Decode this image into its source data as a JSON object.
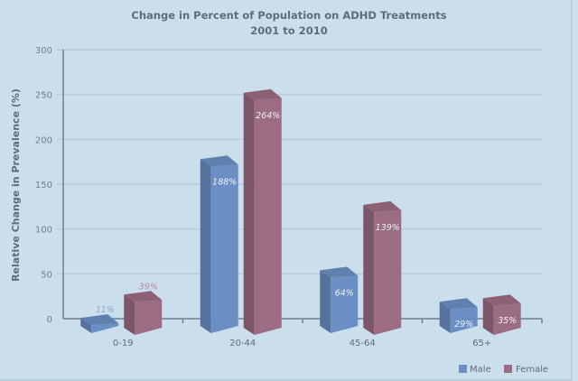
{
  "chart_data": {
    "type": "bar",
    "subtype": "3d-clustered-column",
    "title": "Change in Percent of Population on ADHD Treatments",
    "subtitle": "2001 to 2010",
    "xlabel": "",
    "ylabel": "Relative Change in Prevalence (%)",
    "ylim": [
      0,
      300
    ],
    "yticks": [
      0,
      50,
      100,
      150,
      200,
      250,
      300
    ],
    "grid": true,
    "legend_position": "bottom-right",
    "categories": [
      "0-19",
      "20-44",
      "45-64",
      "65+"
    ],
    "series": [
      {
        "name": "Male",
        "color": "#6b8fc4",
        "values": [
          11,
          188,
          64,
          29
        ],
        "labels": [
          "11%",
          "188%",
          "64%",
          "29%"
        ]
      },
      {
        "name": "Female",
        "color": "#9b6c82",
        "values": [
          39,
          264,
          139,
          35
        ],
        "labels": [
          "39%",
          "264%",
          "139%",
          "35%"
        ]
      }
    ]
  }
}
